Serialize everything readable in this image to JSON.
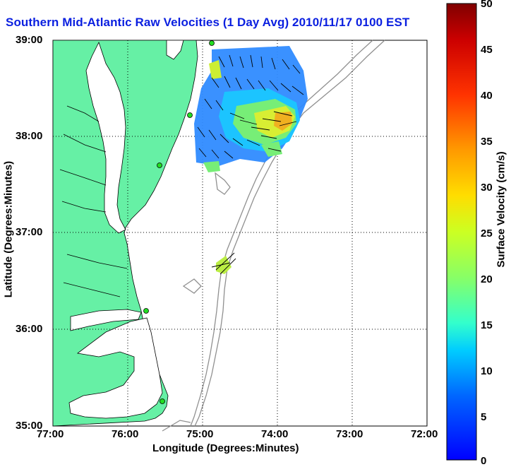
{
  "title": "Southern Mid-Atlantic Raw Velocities (1 Day Avg) 2010/11/17 0100 EST",
  "xlabel": "Longitude (Degrees:Minutes)",
  "ylabel": "Latitude (Degrees:Minutes)",
  "colorbar": {
    "label": "Surface Velocity (cm/s)",
    "ticks": [
      "50",
      "45",
      "40",
      "35",
      "30",
      "25",
      "20",
      "15",
      "10",
      "5",
      "0"
    ],
    "range": [
      0,
      50
    ],
    "colors": [
      "#0000ff",
      "#00aaff",
      "#00ffff",
      "#55ff88",
      "#ccff33",
      "#ffdd00",
      "#ff8800",
      "#ff2200",
      "#aa0000",
      "#800000"
    ]
  },
  "x_ticks": [
    "77:00",
    "76:00",
    "75:00",
    "74:00",
    "73:00",
    "72:00"
  ],
  "y_ticks": [
    "39:00",
    "38:00",
    "37:00",
    "36:00",
    "35:00"
  ],
  "colors": {
    "land": "#66f0a5",
    "title": "#0a1fe0",
    "bathymetry": "#909090",
    "station": "#22dd22"
  }
}
